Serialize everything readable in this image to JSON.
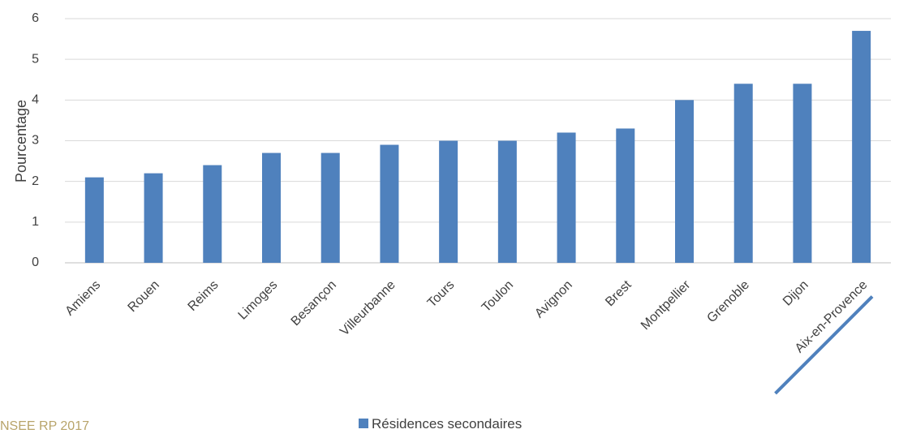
{
  "source": "NSEE RP 2017",
  "chart_data": {
    "type": "bar",
    "categories": [
      "Amiens",
      "Rouen",
      "Reims",
      "Limoges",
      "Besançon",
      "Villeurbanne",
      "Tours",
      "Toulon",
      "Avignon",
      "Brest",
      "Montpellier",
      "Grenoble",
      "Dijon",
      "Aix-en-Provence"
    ],
    "series": [
      {
        "name": "Résidences secondaires",
        "values": [
          2.1,
          2.2,
          2.4,
          2.7,
          2.7,
          2.9,
          3.0,
          3.0,
          3.2,
          3.3,
          4.0,
          4.4,
          4.4,
          5.7
        ]
      }
    ],
    "ylabel": "Pourcentage",
    "ylim": [
      0,
      6
    ],
    "yticks": [
      0,
      1,
      2,
      3,
      4,
      5,
      6
    ],
    "grid": true,
    "legend": "bottom",
    "bar_color": "#4f81bd",
    "highlight": {
      "category": "Aix-en-Provence",
      "style": "underline",
      "color": "#4f81bd"
    }
  }
}
